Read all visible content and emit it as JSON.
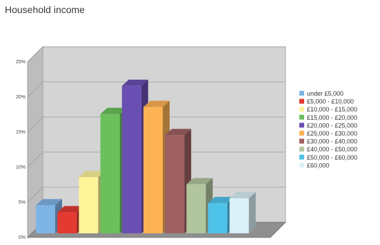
{
  "chart_data": {
    "type": "bar",
    "title": "Household income",
    "xlabel": "",
    "ylabel": "",
    "ylim": [
      0,
      25
    ],
    "y_ticks": [
      "0%",
      "5%",
      "10%",
      "15%",
      "20%",
      "25%"
    ],
    "y_tick_values": [
      0,
      5,
      10,
      15,
      20,
      25
    ],
    "grid": true,
    "style": "3d",
    "legend_position": "right",
    "categories": [
      "under £5,000",
      "£5,000 - £10,000",
      "£10,000 - £15,000",
      "£15,000 - £20,000",
      "£20,000 - £25,000",
      "£25,000 - £30,000",
      "£30,000 - £40,000",
      "£40,000 - £50,000",
      "£50,000 - £60,000",
      "£60,000"
    ],
    "values": [
      4,
      3,
      8,
      17,
      21,
      18,
      14,
      7,
      4.3,
      5
    ],
    "colors": [
      "#7fb4e6",
      "#e33a32",
      "#fdf49a",
      "#6cc05c",
      "#6a4fb2",
      "#fdb254",
      "#9e6060",
      "#b1c59f",
      "#4fc2ea",
      "#d9f0f6"
    ]
  }
}
